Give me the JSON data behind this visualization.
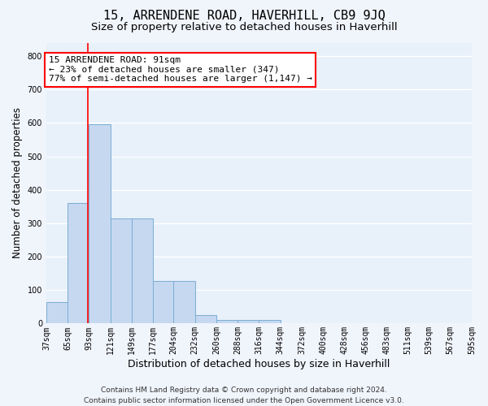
{
  "title": "15, ARRENDENE ROAD, HAVERHILL, CB9 9JQ",
  "subtitle": "Size of property relative to detached houses in Haverhill",
  "xlabel": "Distribution of detached houses by size in Haverhill",
  "ylabel": "Number of detached properties",
  "bin_edges": [
    37,
    65,
    93,
    121,
    149,
    177,
    204,
    232,
    260,
    288,
    316,
    344,
    372,
    400,
    428,
    456,
    483,
    511,
    539,
    567,
    595
  ],
  "bar_heights": [
    65,
    360,
    595,
    315,
    315,
    128,
    128,
    25,
    10,
    10,
    10,
    0,
    0,
    0,
    0,
    0,
    0,
    0,
    0,
    0
  ],
  "bar_color": "#c5d8f0",
  "bar_edge_color": "#7aadd4",
  "background_color": "#e8f0fa",
  "grid_color": "#ffffff",
  "fig_background": "#f0f4fb",
  "ylim": [
    0,
    840
  ],
  "yticks": [
    0,
    100,
    200,
    300,
    400,
    500,
    600,
    700,
    800
  ],
  "red_line_x": 91,
  "annotation_line1": "15 ARRENDENE ROAD: 91sqm",
  "annotation_line2": "← 23% of detached houses are smaller (347)",
  "annotation_line3": "77% of semi-detached houses are larger (1,147) →",
  "footer_text": "Contains HM Land Registry data © Crown copyright and database right 2024.\nContains public sector information licensed under the Open Government Licence v3.0.",
  "title_fontsize": 11,
  "subtitle_fontsize": 9.5,
  "annotation_fontsize": 8,
  "tick_fontsize": 7,
  "ylabel_fontsize": 8.5,
  "xlabel_fontsize": 9,
  "footer_fontsize": 6.5
}
